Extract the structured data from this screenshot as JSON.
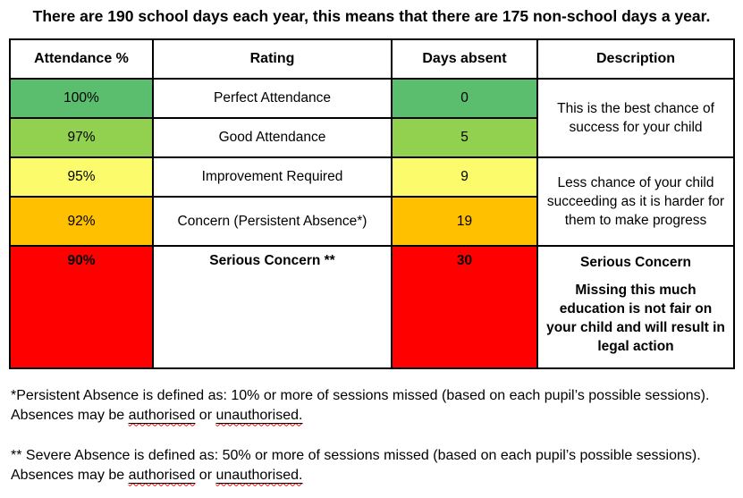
{
  "title": "There are 190 school days each year, this means that there are 175 non-school days a year.",
  "colors": {
    "perfect_green": "#5BBD6E",
    "good_green": "#92D050",
    "improvement_yellow": "#FBFB6B",
    "concern_orange": "#FFC000",
    "serious_red": "#FF0000",
    "border_black": "#000000",
    "spellcheck_red": "#FF0000"
  },
  "table": {
    "headers": [
      "Attendance %",
      "Rating",
      "Days absent",
      "Description"
    ],
    "rows": [
      {
        "attendance": "100%",
        "rating": "Perfect Attendance",
        "days_absent": "0",
        "color": "#5BBD6E"
      },
      {
        "attendance": "97%",
        "rating": "Good Attendance",
        "days_absent": "5",
        "color": "#92D050"
      },
      {
        "attendance": "95%",
        "rating": "Improvement Required",
        "days_absent": "9",
        "color": "#FBFB6B"
      },
      {
        "attendance": "92%",
        "rating": "Concern (Persistent Absence*)",
        "days_absent": "19",
        "color": "#FFC000"
      },
      {
        "attendance": "90%",
        "rating": "Serious Concern **",
        "days_absent": "30",
        "color": "#FF0000"
      }
    ],
    "merged_descriptions": [
      {
        "spans_rows": "1-2",
        "text": "This is the best chance of success for your child"
      },
      {
        "spans_rows": "3-4",
        "text": "Less chance of your child succeeding as it is harder for them to make progress"
      },
      {
        "spans_rows": "5",
        "heading": "Serious Concern",
        "text": "Missing this much education is not fair on your child and will result in legal action"
      }
    ]
  },
  "footnotes": [
    {
      "text_before": "*Persistent Absence is defined as: 10% or more of sessions missed (based on each pupil’s possible sessions). Absences may be ",
      "word1": "authorised",
      "separator": " or ",
      "word2": "unauthorised."
    },
    {
      "text_before": "** Severe Absence is defined as: 50% or more of sessions missed (based on each pupil’s possible sessions). Absences may be ",
      "word1": "authorised",
      "separator": " or ",
      "word2": "unauthorised."
    }
  ]
}
